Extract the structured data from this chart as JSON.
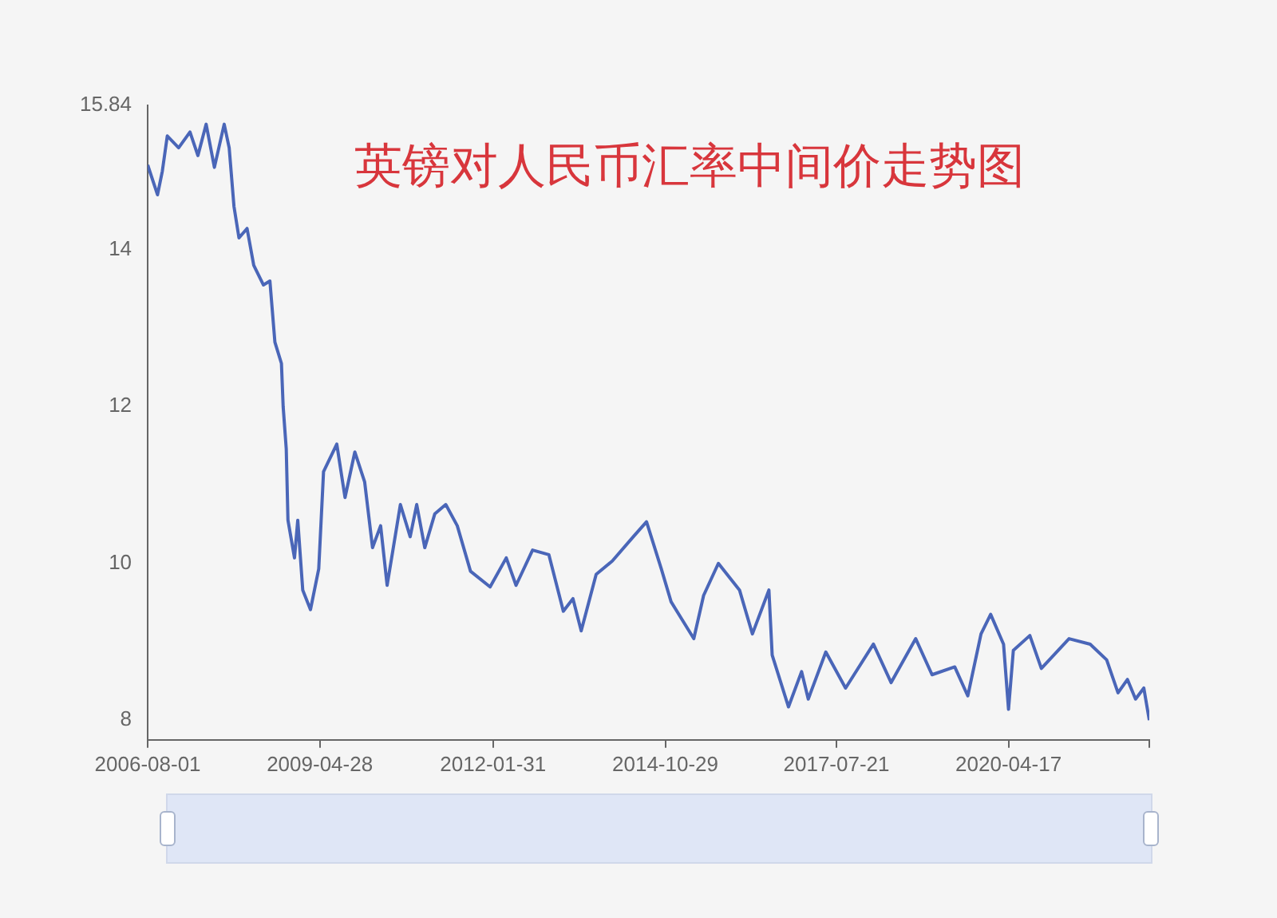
{
  "chart_data": {
    "type": "line",
    "title": "英镑对人民币汇率中间价走势图",
    "color": "#4a66b8",
    "grid": false,
    "legend": false,
    "x": [
      "2006-08-01",
      "2006-09-27",
      "2006-10-25",
      "2006-11-23",
      "2007-01-28",
      "2007-04-04",
      "2007-05-20",
      "2007-07-07",
      "2007-08-24",
      "2007-10-20",
      "2007-11-18",
      "2007-12-16",
      "2008-01-14",
      "2008-03-01",
      "2008-04-09",
      "2008-06-04",
      "2008-07-12",
      "2008-08-10",
      "2008-09-17",
      "2008-09-27",
      "2008-10-15",
      "2008-10-25",
      "2008-12-02",
      "2008-12-21",
      "2009-01-19",
      "2009-03-05",
      "2009-04-22",
      "2009-05-20",
      "2009-08-05",
      "2009-09-22",
      "2009-11-18",
      "2010-01-14",
      "2010-03-01",
      "2010-04-17",
      "2010-05-25",
      "2010-08-10",
      "2010-10-06",
      "2010-11-13",
      "2010-12-30",
      "2011-02-26",
      "2011-05-01",
      "2011-07-07",
      "2011-09-22",
      "2012-01-14",
      "2012-04-17",
      "2012-06-13",
      "2012-09-17",
      "2012-12-21",
      "2013-03-15",
      "2013-05-10",
      "2013-06-27",
      "2013-09-22",
      "2013-12-25",
      "2014-04-26",
      "2014-07-12",
      "2014-10-06",
      "2014-12-02",
      "2015-04-13",
      "2015-06-09",
      "2015-09-03",
      "2016-01-04",
      "2016-03-19",
      "2016-06-23",
      "2016-07-12",
      "2016-10-15",
      "2016-12-30",
      "2017-02-07",
      "2017-05-20",
      "2017-09-12",
      "2018-02-21",
      "2018-06-04",
      "2018-10-25",
      "2019-01-28",
      "2019-06-09",
      "2019-08-24",
      "2019-11-09",
      "2020-01-04",
      "2020-03-19",
      "2020-04-17",
      "2020-05-15",
      "2020-08-19",
      "2020-10-25",
      "2021-04-04",
      "2021-08-05",
      "2021-11-09",
      "2022-01-14",
      "2022-03-10",
      "2022-04-26",
      "2022-06-13",
      "2022-07-15"
    ],
    "values": [
      15.08,
      14.7,
      15.0,
      15.45,
      15.3,
      15.5,
      15.2,
      15.6,
      15.05,
      15.6,
      15.3,
      14.55,
      14.15,
      14.27,
      13.8,
      13.55,
      13.6,
      12.82,
      12.55,
      12.0,
      11.46,
      10.55,
      10.07,
      10.55,
      9.66,
      9.41,
      9.93,
      11.17,
      11.52,
      10.84,
      11.42,
      11.04,
      10.2,
      10.48,
      9.72,
      10.75,
      10.34,
      10.75,
      10.2,
      10.63,
      10.75,
      10.48,
      9.9,
      9.7,
      10.07,
      9.72,
      10.17,
      10.11,
      9.39,
      9.55,
      9.14,
      9.86,
      10.03,
      10.34,
      10.53,
      9.93,
      9.51,
      9.04,
      9.59,
      10.0,
      9.66,
      9.1,
      9.66,
      8.83,
      8.17,
      8.62,
      8.27,
      8.87,
      8.41,
      8.97,
      8.48,
      9.04,
      8.58,
      8.68,
      8.31,
      9.1,
      9.35,
      8.97,
      8.14,
      8.89,
      9.08,
      8.66,
      9.04,
      8.97,
      8.77,
      8.35,
      8.52,
      8.27,
      8.41,
      8.0
    ],
    "xlim": [
      "2006-08-01",
      "2022-07-15"
    ],
    "xticks": [
      "2006-08-01",
      "2009-04-28",
      "2012-01-31",
      "2014-10-29",
      "2017-07-21",
      "2020-04-17",
      {
        "value": "2022-07-15",
        "label": null
      }
    ],
    "ylim": [
      7.75,
      15.84
    ],
    "yticks": [
      8,
      10,
      12,
      14,
      15.84
    ]
  }
}
